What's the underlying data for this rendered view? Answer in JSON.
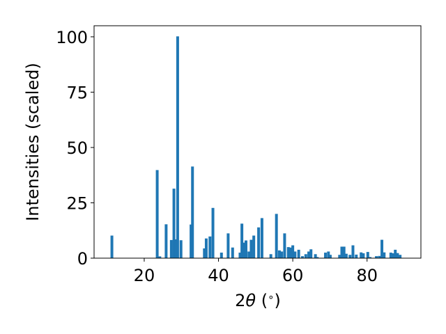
{
  "chart_data": {
    "type": "bar",
    "xlabel_parts": [
      "2",
      "θ",
      " (",
      "∘",
      ")"
    ],
    "ylabel": "Intensities (scaled)",
    "xlim": [
      6.5,
      94.5
    ],
    "ylim": [
      0,
      105
    ],
    "xticks": [
      20,
      40,
      60,
      80
    ],
    "yticks": [
      0,
      25,
      50,
      75,
      100
    ],
    "grid": false,
    "legend": "none",
    "bar_color": "#1f77b4",
    "x": [
      11.3,
      23.5,
      24.2,
      25.9,
      27.3,
      28.0,
      28.5,
      29.0,
      29.9,
      32.6,
      33.0,
      36.2,
      36.7,
      37.7,
      38.5,
      40.8,
      42.6,
      43.8,
      45.8,
      46.3,
      46.8,
      47.4,
      48.2,
      48.8,
      49.5,
      50.8,
      51.7,
      54.1,
      55.6,
      56.4,
      57.0,
      57.8,
      58.8,
      59.4,
      60.0,
      60.6,
      61.6,
      62.6,
      63.5,
      64.3,
      64.9,
      66.1,
      66.6,
      68.8,
      69.6,
      70.1,
      72.6,
      73.2,
      73.8,
      74.4,
      75.4,
      76.2,
      77.1,
      78.4,
      79.0,
      80.2,
      80.8,
      82.5,
      83.3,
      84.0,
      84.6,
      86.4,
      87.0,
      87.6,
      88.2,
      88.9
    ],
    "values": [
      10.2,
      39.8,
      0.8,
      15.3,
      8.2,
      31.4,
      8.5,
      100.2,
      8.1,
      15.2,
      41.4,
      4.4,
      8.9,
      9.8,
      22.7,
      2.5,
      11.2,
      4.8,
      2.5,
      15.6,
      7.0,
      8.0,
      3.0,
      8.3,
      10.2,
      13.9,
      18.1,
      1.8,
      20.0,
      3.5,
      3.0,
      11.2,
      5.0,
      4.8,
      5.8,
      3.0,
      3.8,
      0.9,
      1.8,
      3.0,
      4.0,
      1.8,
      0.5,
      2.5,
      3.0,
      1.5,
      1.5,
      5.2,
      5.2,
      2.0,
      1.5,
      5.8,
      1.6,
      2.6,
      2.2,
      2.8,
      0.5,
      0.9,
      1.0,
      8.3,
      2.6,
      2.5,
      2.2,
      3.8,
      2.3,
      1.5
    ]
  }
}
